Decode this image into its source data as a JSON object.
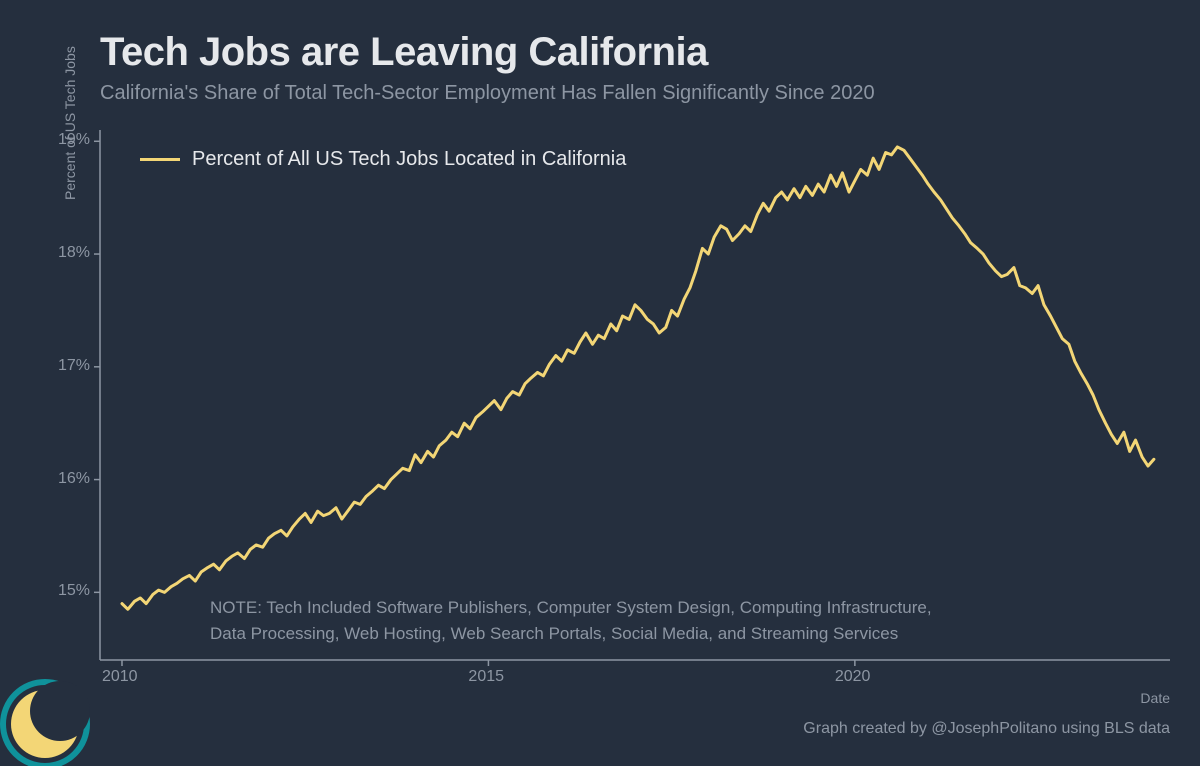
{
  "title": "Tech Jobs are Leaving California",
  "subtitle": "California's Share of Total Tech-Sector Employment Has Fallen Significantly Since 2020",
  "ylabel": "Percent of US Tech Jobs",
  "xlabel": "Date",
  "credit": "Graph created by @JosephPolitano using BLS data",
  "note_line1": "NOTE: Tech Included Software Publishers, Computer System Design, Computing Infrastructure,",
  "note_line2": "Data Processing, Web Hosting, Web Search Portals, Social Media, and Streaming Services",
  "legend_label": "Percent of All US Tech Jobs Located in California",
  "chart": {
    "type": "line",
    "background_color": "#252f3e",
    "line_color": "#f3d676",
    "line_width": 3,
    "axis_color": "#8d96a3",
    "text_color": "#8d96a3",
    "title_color": "#e6e8eb",
    "title_fontsize": 40,
    "subtitle_fontsize": 20,
    "tick_fontsize": 16,
    "label_fontsize": 14,
    "xlim": [
      2009.7,
      2024.3
    ],
    "ylim": [
      14.4,
      19.1
    ],
    "yticks": [
      15,
      16,
      17,
      18,
      19
    ],
    "ytick_labels": [
      "15%",
      "16%",
      "17%",
      "18%",
      "19%"
    ],
    "xticks": [
      2010,
      2015,
      2020
    ],
    "xtick_labels": [
      "2010",
      "2015",
      "2020"
    ],
    "series": {
      "x": [
        2010.0,
        2010.08,
        2010.17,
        2010.25,
        2010.33,
        2010.42,
        2010.5,
        2010.58,
        2010.67,
        2010.75,
        2010.83,
        2010.92,
        2011.0,
        2011.08,
        2011.17,
        2011.25,
        2011.33,
        2011.42,
        2011.5,
        2011.58,
        2011.67,
        2011.75,
        2011.83,
        2011.92,
        2012.0,
        2012.08,
        2012.17,
        2012.25,
        2012.33,
        2012.42,
        2012.5,
        2012.58,
        2012.67,
        2012.75,
        2012.83,
        2012.92,
        2013.0,
        2013.08,
        2013.17,
        2013.25,
        2013.33,
        2013.42,
        2013.5,
        2013.58,
        2013.67,
        2013.75,
        2013.83,
        2013.92,
        2014.0,
        2014.08,
        2014.17,
        2014.25,
        2014.33,
        2014.42,
        2014.5,
        2014.58,
        2014.67,
        2014.75,
        2014.83,
        2014.92,
        2015.0,
        2015.08,
        2015.17,
        2015.25,
        2015.33,
        2015.42,
        2015.5,
        2015.58,
        2015.67,
        2015.75,
        2015.83,
        2015.92,
        2016.0,
        2016.08,
        2016.17,
        2016.25,
        2016.33,
        2016.42,
        2016.5,
        2016.58,
        2016.67,
        2016.75,
        2016.83,
        2016.92,
        2017.0,
        2017.08,
        2017.17,
        2017.25,
        2017.33,
        2017.42,
        2017.5,
        2017.58,
        2017.67,
        2017.75,
        2017.83,
        2017.92,
        2018.0,
        2018.08,
        2018.17,
        2018.25,
        2018.33,
        2018.42,
        2018.5,
        2018.58,
        2018.67,
        2018.75,
        2018.83,
        2018.92,
        2019.0,
        2019.08,
        2019.17,
        2019.25,
        2019.33,
        2019.42,
        2019.5,
        2019.58,
        2019.67,
        2019.75,
        2019.83,
        2019.92,
        2020.0,
        2020.08,
        2020.17,
        2020.25,
        2020.33,
        2020.42,
        2020.5,
        2020.58,
        2020.67,
        2020.75,
        2020.83,
        2020.92,
        2021.0,
        2021.08,
        2021.17,
        2021.25,
        2021.33,
        2021.42,
        2021.5,
        2021.58,
        2021.67,
        2021.75,
        2021.83,
        2021.92,
        2022.0,
        2022.08,
        2022.17,
        2022.25,
        2022.33,
        2022.42,
        2022.5,
        2022.58,
        2022.67,
        2022.75,
        2022.83,
        2022.92,
        2023.0,
        2023.08,
        2023.17,
        2023.25,
        2023.33,
        2023.42,
        2023.5,
        2023.58,
        2023.67,
        2023.75,
        2023.83,
        2023.92,
        2024.0,
        2024.08
      ],
      "y": [
        14.9,
        14.85,
        14.92,
        14.95,
        14.9,
        14.98,
        15.02,
        15.0,
        15.05,
        15.08,
        15.12,
        15.15,
        15.1,
        15.18,
        15.22,
        15.25,
        15.2,
        15.28,
        15.32,
        15.35,
        15.3,
        15.38,
        15.42,
        15.4,
        15.48,
        15.52,
        15.55,
        15.5,
        15.58,
        15.65,
        15.7,
        15.62,
        15.72,
        15.68,
        15.7,
        15.75,
        15.65,
        15.72,
        15.8,
        15.78,
        15.85,
        15.9,
        15.95,
        15.92,
        16.0,
        16.05,
        16.1,
        16.08,
        16.22,
        16.15,
        16.25,
        16.2,
        16.3,
        16.35,
        16.42,
        16.38,
        16.5,
        16.45,
        16.55,
        16.6,
        16.65,
        16.7,
        16.62,
        16.72,
        16.78,
        16.75,
        16.85,
        16.9,
        16.95,
        16.92,
        17.02,
        17.1,
        17.05,
        17.15,
        17.12,
        17.22,
        17.3,
        17.2,
        17.28,
        17.25,
        17.38,
        17.32,
        17.45,
        17.42,
        17.55,
        17.5,
        17.42,
        17.38,
        17.3,
        17.35,
        17.5,
        17.45,
        17.6,
        17.7,
        17.85,
        18.05,
        18.0,
        18.15,
        18.25,
        18.22,
        18.12,
        18.18,
        18.25,
        18.2,
        18.35,
        18.45,
        18.38,
        18.5,
        18.55,
        18.48,
        18.58,
        18.5,
        18.6,
        18.52,
        18.62,
        18.55,
        18.7,
        18.6,
        18.72,
        18.55,
        18.65,
        18.75,
        18.7,
        18.85,
        18.75,
        18.9,
        18.88,
        18.95,
        18.92,
        18.85,
        18.78,
        18.7,
        18.62,
        18.55,
        18.48,
        18.4,
        18.32,
        18.25,
        18.18,
        18.1,
        18.05,
        18.0,
        17.92,
        17.85,
        17.8,
        17.82,
        17.88,
        17.72,
        17.7,
        17.65,
        17.72,
        17.55,
        17.45,
        17.35,
        17.25,
        17.2,
        17.05,
        16.95,
        16.85,
        16.75,
        16.62,
        16.5,
        16.4,
        16.32,
        16.42,
        16.25,
        16.35,
        16.2,
        16.12,
        16.18
      ]
    },
    "logo": {
      "outer_ring_color": "#0f929b",
      "sun_color": "#f3d676",
      "crescent_color": "#252f3e"
    }
  }
}
